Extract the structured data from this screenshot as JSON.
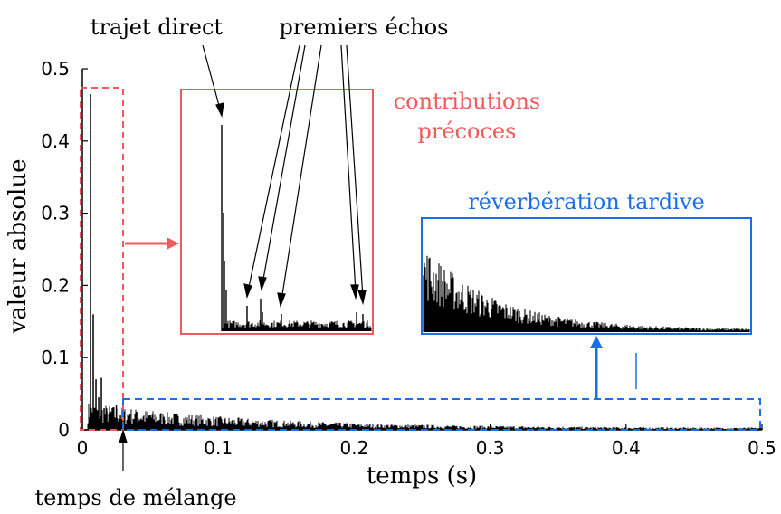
{
  "chart_data": {
    "type": "line",
    "xlabel": "temps (s)",
    "ylabel": "valeur absolue",
    "xlim": [
      0,
      0.5
    ],
    "ylim": [
      0,
      0.5
    ],
    "xticks": [
      "0",
      "0.1",
      "0.2",
      "0.3",
      "0.4",
      "0.5"
    ],
    "yticks": [
      "0",
      "0.1",
      "0.2",
      "0.3",
      "0.4",
      "0.5"
    ],
    "grid": false,
    "series": [
      {
        "x": [
          0.0,
          0.004,
          0.006,
          0.007,
          0.008,
          0.009,
          0.01,
          0.011,
          0.012,
          0.013,
          0.014,
          0.015,
          0.016,
          0.018,
          0.02,
          0.022,
          0.025,
          0.028,
          0.03,
          0.035,
          0.04,
          0.05,
          0.06,
          0.08,
          0.1,
          0.15,
          0.2,
          0.25,
          0.3,
          0.35,
          0.4,
          0.45,
          0.5
        ],
        "y": [
          0.0,
          0.0,
          0.465,
          0.02,
          0.16,
          0.01,
          0.07,
          0.02,
          0.045,
          0.01,
          0.072,
          0.01,
          0.03,
          0.025,
          0.025,
          0.03,
          0.035,
          0.02,
          0.032,
          0.022,
          0.025,
          0.02,
          0.018,
          0.015,
          0.012,
          0.008,
          0.006,
          0.005,
          0.004,
          0.003,
          0.003,
          0.002,
          0.002
        ]
      }
    ],
    "annotations": {
      "direct_path": "trajet direct",
      "early_echoes": "premiers échos",
      "early_contributions_line1": "contributions",
      "early_contributions_line2": "précoces",
      "late_reverb": "réverbération tardive",
      "mixing_time": "temps de mélange"
    },
    "early_window": {
      "x": [
        0,
        0.03
      ],
      "y": [
        0,
        0.475
      ]
    },
    "late_window": {
      "x": [
        0.03,
        0.5
      ],
      "y": [
        0,
        0.04
      ]
    },
    "mixing_time_x": 0.03
  },
  "colors": {
    "early": "#f05a5a",
    "late": "#1a6fe8",
    "signal": "#000000"
  }
}
